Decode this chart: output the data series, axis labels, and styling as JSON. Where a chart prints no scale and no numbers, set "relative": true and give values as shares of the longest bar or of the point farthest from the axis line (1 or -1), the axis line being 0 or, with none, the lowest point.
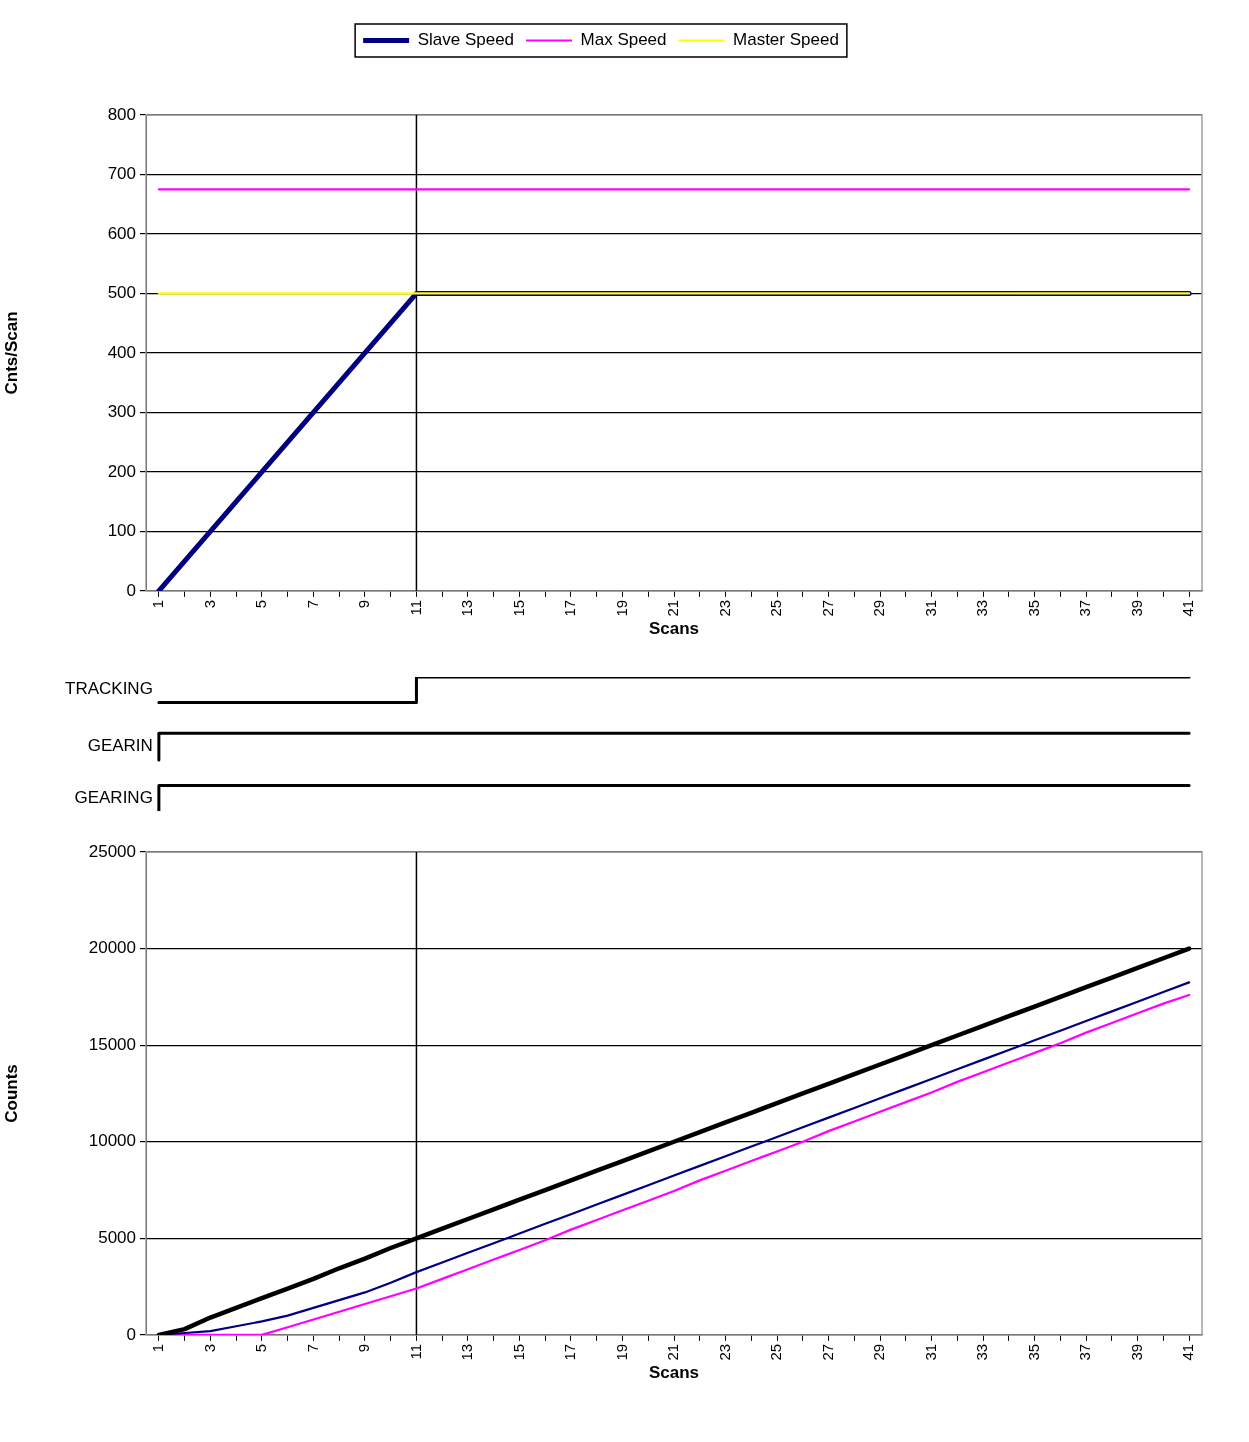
{
  "chart_data": [
    {
      "type": "line",
      "categories": [
        "1",
        null,
        "3",
        null,
        "5",
        null,
        "7",
        null,
        "9",
        null,
        "11",
        null,
        "13",
        null,
        "15",
        null,
        "17",
        null,
        "19",
        null,
        "21",
        null,
        "23",
        null,
        "25",
        null,
        "27",
        null,
        "29",
        null,
        "31",
        null,
        "33",
        null,
        "35",
        null,
        "37",
        null,
        "39",
        null,
        "41"
      ],
      "xlabel": "Scans",
      "ylabel": "Cnts/Scan",
      "ylim": [
        0,
        800
      ],
      "yticks": [
        0,
        100,
        200,
        300,
        400,
        500,
        600,
        700,
        800
      ],
      "grid": "y",
      "legend": "top",
      "ref_lines": [
        {
          "axis": "x",
          "value": "11",
          "color": "#000000"
        }
      ],
      "series": [
        {
          "name": "Slave Speed",
          "color": "#000080",
          "values": [
            0,
            50,
            100,
            150,
            200,
            250,
            300,
            350,
            400,
            450,
            500,
            500,
            500,
            500,
            500,
            500,
            500,
            500,
            500,
            500,
            500,
            500,
            500,
            500,
            500,
            500,
            500,
            500,
            500,
            500,
            500,
            500,
            500,
            500,
            500,
            500,
            500,
            500,
            500,
            500,
            500
          ]
        },
        {
          "name": "Max Speed",
          "color": "#ff00ff",
          "values": [
            675,
            675,
            675,
            675,
            675,
            675,
            675,
            675,
            675,
            675,
            675,
            675,
            675,
            675,
            675,
            675,
            675,
            675,
            675,
            675,
            675,
            675,
            675,
            675,
            675,
            675,
            675,
            675,
            675,
            675,
            675,
            675,
            675,
            675,
            675,
            675,
            675,
            675,
            675,
            675,
            675
          ]
        },
        {
          "name": "Master Speed",
          "color": "#ffff00",
          "values": [
            500,
            500,
            500,
            500,
            500,
            500,
            500,
            500,
            500,
            500,
            500,
            500,
            500,
            500,
            500,
            500,
            500,
            500,
            500,
            500,
            500,
            500,
            500,
            500,
            500,
            500,
            500,
            500,
            500,
            500,
            500,
            500,
            500,
            500,
            500,
            500,
            500,
            500,
            500,
            500,
            500
          ]
        }
      ]
    },
    {
      "type": "step",
      "relative": true,
      "categories": [
        null,
        null,
        null,
        null,
        null,
        null,
        null,
        null,
        null,
        null,
        null,
        null,
        null,
        null,
        null,
        null,
        null,
        null,
        null,
        null,
        null,
        null,
        null,
        null,
        null,
        null,
        null,
        null,
        null,
        null,
        null,
        null,
        null,
        null,
        null,
        null,
        null,
        null,
        null,
        null,
        null
      ],
      "tick_labels": false,
      "series": [
        {
          "name": "TRACKING",
          "color": "#000000",
          "values": [
            0.81,
            0.81,
            0.81,
            0.81,
            0.81,
            0.81,
            0.81,
            0.81,
            0.81,
            0.81,
            0.81,
            1,
            1,
            1,
            1,
            1,
            1,
            1,
            1,
            1,
            1,
            1,
            1,
            1,
            1,
            1,
            1,
            1,
            1,
            1,
            1,
            1,
            1,
            1,
            1,
            1,
            1,
            1,
            1,
            1,
            1
          ]
        },
        {
          "name": "GEARIN",
          "color": "#000000",
          "values": [
            0.38,
            0.58,
            0.58,
            0.58,
            0.58,
            0.58,
            0.58,
            0.58,
            0.58,
            0.58,
            0.58,
            0.58,
            0.58,
            0.58,
            0.58,
            0.58,
            0.58,
            0.58,
            0.58,
            0.58,
            0.58,
            0.58,
            0.58,
            0.58,
            0.58,
            0.58,
            0.58,
            0.58,
            0.58,
            0.58,
            0.58,
            0.58,
            0.58,
            0.58,
            0.58,
            0.58,
            0.58,
            0.58,
            0.58,
            0.58,
            0.58
          ]
        },
        {
          "name": "GEARING",
          "color": "#000000",
          "values": [
            0,
            0.19,
            0.19,
            0.19,
            0.19,
            0.19,
            0.19,
            0.19,
            0.19,
            0.19,
            0.19,
            0.19,
            0.19,
            0.19,
            0.19,
            0.19,
            0.19,
            0.19,
            0.19,
            0.19,
            0.19,
            0.19,
            0.19,
            0.19,
            0.19,
            0.19,
            0.19,
            0.19,
            0.19,
            0.19,
            0.19,
            0.19,
            0.19,
            0.19,
            0.19,
            0.19,
            0.19,
            0.19,
            0.19,
            0.19,
            0.19
          ]
        }
      ]
    },
    {
      "type": "line",
      "categories": [
        "1",
        null,
        "3",
        null,
        "5",
        null,
        "7",
        null,
        "9",
        null,
        "11",
        null,
        "13",
        null,
        "15",
        null,
        "17",
        null,
        "19",
        null,
        "21",
        null,
        "23",
        null,
        "25",
        null,
        "27",
        null,
        "29",
        null,
        "31",
        null,
        "33",
        null,
        "35",
        null,
        "37",
        null,
        "39",
        null,
        "41"
      ],
      "xlabel": "Scans",
      "ylabel": "Counts",
      "ylim": [
        0,
        25000
      ],
      "yticks": [
        0,
        5000,
        10000,
        15000,
        20000,
        25000
      ],
      "grid": "y",
      "ref_lines": [
        {
          "axis": "x",
          "value": "11",
          "color": "#000000"
        }
      ],
      "series": [
        {
          "color": "#000000",
          "values": [
            0,
            300,
            900,
            1400,
            1900,
            2400,
            2900,
            3450,
            3950,
            4500,
            5000,
            5500,
            6000,
            6500,
            7000,
            7500,
            8000,
            8500,
            9000,
            9500,
            10000,
            10500,
            11000,
            11500,
            12000,
            12500,
            13000,
            13500,
            14000,
            14500,
            15000,
            15500,
            16000,
            16500,
            17000,
            17500,
            18000,
            18500,
            19000,
            19500,
            20000
          ]
        },
        {
          "color": "#000080",
          "values": [
            0,
            100,
            200,
            450,
            700,
            1000,
            1400,
            1800,
            2200,
            2700,
            3250,
            3750,
            4250,
            4750,
            5250,
            5750,
            6250,
            6750,
            7250,
            7750,
            8250,
            8750,
            9250,
            9750,
            10250,
            10750,
            11250,
            11750,
            12250,
            12750,
            13250,
            13750,
            14250,
            14750,
            15250,
            15750,
            16250,
            16750,
            17250,
            17750,
            18250
          ]
        },
        {
          "color": "#ff00ff",
          "values": [
            0,
            0,
            0,
            0,
            0,
            400,
            800,
            1200,
            1600,
            2000,
            2400,
            2900,
            3400,
            3900,
            4400,
            4900,
            5450,
            5950,
            6450,
            6950,
            7450,
            8000,
            8500,
            9000,
            9500,
            10000,
            10550,
            11050,
            11550,
            12050,
            12550,
            13100,
            13600,
            14100,
            14600,
            15100,
            15650,
            16150,
            16650,
            17150,
            17600
          ]
        }
      ]
    }
  ]
}
